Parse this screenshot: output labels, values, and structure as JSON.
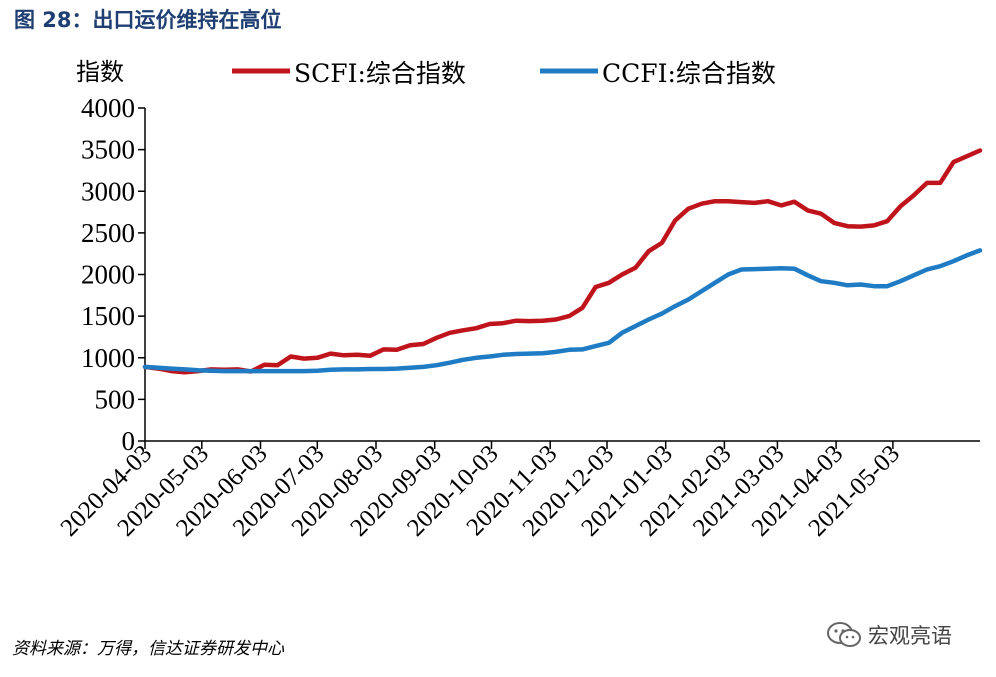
{
  "figure_title": "图 28：出口运价维持在高位",
  "source_note": "资料来源：万得，信达证券研发中心",
  "watermark": "宏观亮语",
  "watermark_icon": "wechat-icon",
  "colors": {
    "title": "#1f3f73",
    "scfi": "#c0141c",
    "ccfi": "#1f7cc4"
  },
  "chart_data": {
    "type": "line",
    "ylabel": "指数",
    "ylim": [
      0,
      4000
    ],
    "yticks": [
      0,
      500,
      1000,
      1500,
      2000,
      2500,
      3000,
      3500,
      4000
    ],
    "xlim": [
      "2020-04-03",
      "2021-06-18"
    ],
    "xticks": [
      "2020-04-03",
      "2020-05-03",
      "2020-06-03",
      "2020-07-03",
      "2020-08-03",
      "2020-09-03",
      "2020-10-03",
      "2020-11-03",
      "2020-12-03",
      "2021-01-03",
      "2021-02-03",
      "2021-03-03",
      "2021-04-03",
      "2021-05-03"
    ],
    "grid": false,
    "legend_position": "top",
    "series": [
      {
        "name": "SCFI:综合指数",
        "color": "#c0141c",
        "points": [
          [
            "2020-04-03",
            890
          ],
          [
            "2020-04-10",
            870
          ],
          [
            "2020-04-17",
            840
          ],
          [
            "2020-04-24",
            825
          ],
          [
            "2020-05-01",
            840
          ],
          [
            "2020-05-08",
            860
          ],
          [
            "2020-05-15",
            855
          ],
          [
            "2020-05-22",
            860
          ],
          [
            "2020-05-29",
            835
          ],
          [
            "2020-06-05",
            915
          ],
          [
            "2020-06-12",
            910
          ],
          [
            "2020-06-19",
            1015
          ],
          [
            "2020-06-26",
            990
          ],
          [
            "2020-07-03",
            1000
          ],
          [
            "2020-07-10",
            1050
          ],
          [
            "2020-07-17",
            1030
          ],
          [
            "2020-07-24",
            1035
          ],
          [
            "2020-07-31",
            1025
          ],
          [
            "2020-08-07",
            1100
          ],
          [
            "2020-08-14",
            1095
          ],
          [
            "2020-08-21",
            1150
          ],
          [
            "2020-08-28",
            1165
          ],
          [
            "2020-09-04",
            1240
          ],
          [
            "2020-09-11",
            1300
          ],
          [
            "2020-09-18",
            1330
          ],
          [
            "2020-09-25",
            1355
          ],
          [
            "2020-10-02",
            1405
          ],
          [
            "2020-10-09",
            1415
          ],
          [
            "2020-10-16",
            1445
          ],
          [
            "2020-10-23",
            1440
          ],
          [
            "2020-10-30",
            1445
          ],
          [
            "2020-11-06",
            1460
          ],
          [
            "2020-11-13",
            1500
          ],
          [
            "2020-11-20",
            1600
          ],
          [
            "2020-11-27",
            1850
          ],
          [
            "2020-12-04",
            1900
          ],
          [
            "2020-12-11",
            2000
          ],
          [
            "2020-12-18",
            2080
          ],
          [
            "2020-12-25",
            2280
          ],
          [
            "2021-01-01",
            2380
          ],
          [
            "2021-01-08",
            2650
          ],
          [
            "2021-01-15",
            2790
          ],
          [
            "2021-01-22",
            2850
          ],
          [
            "2021-01-29",
            2880
          ],
          [
            "2021-02-05",
            2880
          ],
          [
            "2021-02-12",
            2870
          ],
          [
            "2021-02-19",
            2860
          ],
          [
            "2021-02-26",
            2880
          ],
          [
            "2021-03-05",
            2830
          ],
          [
            "2021-03-12",
            2875
          ],
          [
            "2021-03-19",
            2770
          ],
          [
            "2021-03-26",
            2730
          ],
          [
            "2021-04-02",
            2620
          ],
          [
            "2021-04-09",
            2580
          ],
          [
            "2021-04-16",
            2575
          ],
          [
            "2021-04-23",
            2590
          ],
          [
            "2021-04-30",
            2640
          ],
          [
            "2021-05-07",
            2820
          ],
          [
            "2021-05-14",
            2950
          ],
          [
            "2021-05-21",
            3100
          ],
          [
            "2021-05-28",
            3100
          ],
          [
            "2021-06-04",
            3350
          ],
          [
            "2021-06-11",
            3420
          ],
          [
            "2021-06-18",
            3490
          ]
        ]
      },
      {
        "name": "CCFI:综合指数",
        "color": "#1f7cc4",
        "points": [
          [
            "2020-04-03",
            890
          ],
          [
            "2020-04-10",
            880
          ],
          [
            "2020-04-17",
            870
          ],
          [
            "2020-04-24",
            860
          ],
          [
            "2020-05-01",
            850
          ],
          [
            "2020-05-08",
            845
          ],
          [
            "2020-05-15",
            840
          ],
          [
            "2020-05-22",
            840
          ],
          [
            "2020-05-29",
            840
          ],
          [
            "2020-06-05",
            840
          ],
          [
            "2020-06-12",
            840
          ],
          [
            "2020-06-19",
            840
          ],
          [
            "2020-06-26",
            840
          ],
          [
            "2020-07-03",
            845
          ],
          [
            "2020-07-10",
            855
          ],
          [
            "2020-07-17",
            860
          ],
          [
            "2020-07-24",
            860
          ],
          [
            "2020-07-31",
            865
          ],
          [
            "2020-08-07",
            865
          ],
          [
            "2020-08-14",
            870
          ],
          [
            "2020-08-21",
            880
          ],
          [
            "2020-08-28",
            890
          ],
          [
            "2020-09-04",
            910
          ],
          [
            "2020-09-11",
            940
          ],
          [
            "2020-09-18",
            975
          ],
          [
            "2020-09-25",
            1000
          ],
          [
            "2020-10-02",
            1015
          ],
          [
            "2020-10-09",
            1035
          ],
          [
            "2020-10-16",
            1045
          ],
          [
            "2020-10-23",
            1050
          ],
          [
            "2020-10-30",
            1055
          ],
          [
            "2020-11-06",
            1070
          ],
          [
            "2020-11-13",
            1095
          ],
          [
            "2020-11-20",
            1100
          ],
          [
            "2020-11-27",
            1140
          ],
          [
            "2020-12-04",
            1180
          ],
          [
            "2020-12-11",
            1300
          ],
          [
            "2020-12-18",
            1380
          ],
          [
            "2020-12-25",
            1460
          ],
          [
            "2021-01-01",
            1530
          ],
          [
            "2021-01-08",
            1620
          ],
          [
            "2021-01-15",
            1700
          ],
          [
            "2021-01-22",
            1800
          ],
          [
            "2021-01-29",
            1900
          ],
          [
            "2021-02-05",
            2000
          ],
          [
            "2021-02-12",
            2060
          ],
          [
            "2021-02-19",
            2065
          ],
          [
            "2021-02-26",
            2070
          ],
          [
            "2021-03-05",
            2075
          ],
          [
            "2021-03-12",
            2070
          ],
          [
            "2021-03-19",
            1990
          ],
          [
            "2021-03-26",
            1920
          ],
          [
            "2021-04-02",
            1900
          ],
          [
            "2021-04-09",
            1870
          ],
          [
            "2021-04-16",
            1880
          ],
          [
            "2021-04-23",
            1860
          ],
          [
            "2021-04-30",
            1860
          ],
          [
            "2021-05-07",
            1920
          ],
          [
            "2021-05-14",
            1990
          ],
          [
            "2021-05-21",
            2060
          ],
          [
            "2021-05-28",
            2100
          ],
          [
            "2021-06-04",
            2160
          ],
          [
            "2021-06-11",
            2230
          ],
          [
            "2021-06-18",
            2290
          ]
        ]
      }
    ]
  }
}
